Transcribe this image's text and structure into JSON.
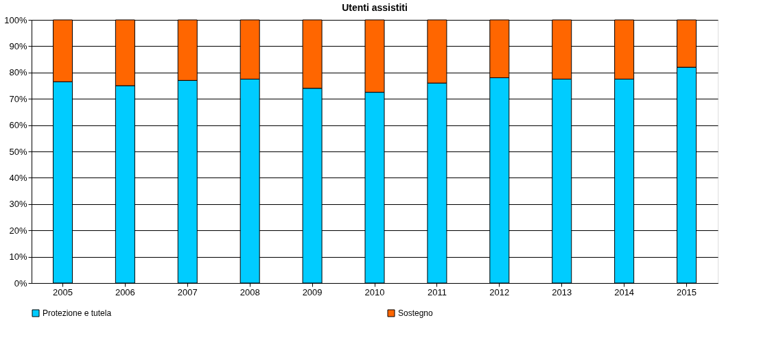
{
  "chart_data": {
    "type": "bar",
    "title": "Utenti assistiti",
    "stacked": true,
    "categories": [
      "2005",
      "2006",
      "2007",
      "2008",
      "2009",
      "2010",
      "2011",
      "2012",
      "2013",
      "2014",
      "2015"
    ],
    "series": [
      {
        "name": "Protezione e tutela",
        "color": "#00ccff",
        "values": [
          76.5,
          75,
          77,
          77.5,
          74,
          72.5,
          76,
          78,
          77.5,
          77.5,
          82
        ]
      },
      {
        "name": "Sostegno",
        "color": "#ff6600",
        "values": [
          23.5,
          25,
          23,
          22.5,
          26,
          27.5,
          24,
          22,
          22.5,
          22.5,
          18
        ]
      }
    ],
    "ylim": [
      0,
      100
    ],
    "yticks": [
      {
        "value": 0,
        "label": "0%"
      },
      {
        "value": 10,
        "label": "10%"
      },
      {
        "value": 20,
        "label": "20%"
      },
      {
        "value": 30,
        "label": "30%"
      },
      {
        "value": 40,
        "label": "40%"
      },
      {
        "value": 50,
        "label": "50%"
      },
      {
        "value": 60,
        "label": "60%"
      },
      {
        "value": 70,
        "label": "70%"
      },
      {
        "value": 80,
        "label": "80%"
      },
      {
        "value": 90,
        "label": "90%"
      },
      {
        "value": 100,
        "label": "100%"
      }
    ],
    "grid": "y",
    "legend": "bottom"
  }
}
